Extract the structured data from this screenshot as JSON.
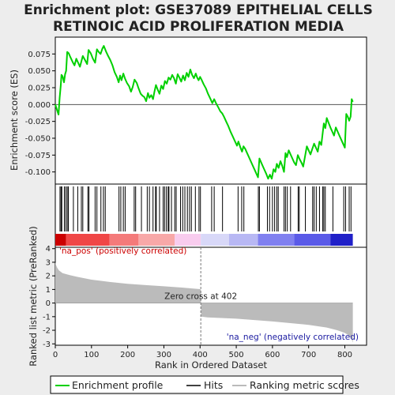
{
  "chart_data": {
    "type": "line",
    "title_line1": "Enrichment plot: GSE37089 EPITHELIAL CELLS",
    "title_line2": "RETINOIC ACID PROLIFERATION MEDIA",
    "n_genes": 822,
    "xlabel": "Rank in Ordered Dataset",
    "x_ticks": [
      0,
      100,
      200,
      300,
      400,
      500,
      600,
      700,
      800
    ],
    "xlim": [
      0,
      860
    ],
    "es_panel": {
      "ylabel": "Enrichment score (ES)",
      "ylim": [
        -0.118,
        0.1
      ],
      "y_ticks": [
        "0.075",
        "0.050",
        "0.025",
        "0.000",
        "-0.025",
        "-0.050",
        "-0.075",
        "-0.100"
      ],
      "y_tick_values": [
        0.075,
        0.05,
        0.025,
        0.0,
        -0.025,
        -0.05,
        -0.075,
        -0.1
      ],
      "color": "#00d000",
      "points": [
        [
          0,
          0.0
        ],
        [
          3,
          -0.005
        ],
        [
          6,
          -0.01
        ],
        [
          9,
          -0.015
        ],
        [
          12,
          0.01
        ],
        [
          15,
          0.028
        ],
        [
          17,
          0.044
        ],
        [
          20,
          0.042
        ],
        [
          24,
          0.033
        ],
        [
          27,
          0.045
        ],
        [
          30,
          0.05
        ],
        [
          33,
          0.078
        ],
        [
          37,
          0.076
        ],
        [
          42,
          0.07
        ],
        [
          48,
          0.063
        ],
        [
          53,
          0.058
        ],
        [
          58,
          0.068
        ],
        [
          63,
          0.062
        ],
        [
          68,
          0.056
        ],
        [
          72,
          0.064
        ],
        [
          76,
          0.072
        ],
        [
          82,
          0.066
        ],
        [
          88,
          0.06
        ],
        [
          92,
          0.081
        ],
        [
          98,
          0.076
        ],
        [
          104,
          0.068
        ],
        [
          110,
          0.062
        ],
        [
          115,
          0.082
        ],
        [
          120,
          0.078
        ],
        [
          125,
          0.075
        ],
        [
          130,
          0.083
        ],
        [
          134,
          0.087
        ],
        [
          140,
          0.079
        ],
        [
          146,
          0.072
        ],
        [
          152,
          0.066
        ],
        [
          158,
          0.058
        ],
        [
          164,
          0.048
        ],
        [
          170,
          0.041
        ],
        [
          175,
          0.033
        ],
        [
          179,
          0.043
        ],
        [
          183,
          0.036
        ],
        [
          188,
          0.046
        ],
        [
          193,
          0.038
        ],
        [
          198,
          0.032
        ],
        [
          204,
          0.027
        ],
        [
          209,
          0.019
        ],
        [
          214,
          0.026
        ],
        [
          219,
          0.037
        ],
        [
          225,
          0.032
        ],
        [
          230,
          0.024
        ],
        [
          236,
          0.016
        ],
        [
          241,
          0.013
        ],
        [
          246,
          0.011
        ],
        [
          251,
          0.005
        ],
        [
          256,
          0.017
        ],
        [
          260,
          0.01
        ],
        [
          265,
          0.014
        ],
        [
          270,
          0.008
        ],
        [
          274,
          0.019
        ],
        [
          278,
          0.029
        ],
        [
          283,
          0.022
        ],
        [
          288,
          0.016
        ],
        [
          293,
          0.028
        ],
        [
          298,
          0.023
        ],
        [
          303,
          0.035
        ],
        [
          308,
          0.031
        ],
        [
          313,
          0.04
        ],
        [
          318,
          0.037
        ],
        [
          323,
          0.044
        ],
        [
          328,
          0.039
        ],
        [
          333,
          0.031
        ],
        [
          338,
          0.045
        ],
        [
          343,
          0.04
        ],
        [
          348,
          0.034
        ],
        [
          353,
          0.043
        ],
        [
          358,
          0.036
        ],
        [
          363,
          0.047
        ],
        [
          368,
          0.041
        ],
        [
          373,
          0.052
        ],
        [
          378,
          0.044
        ],
        [
          383,
          0.039
        ],
        [
          388,
          0.046
        ],
        [
          392,
          0.04
        ],
        [
          396,
          0.036
        ],
        [
          400,
          0.041
        ],
        [
          404,
          0.037
        ],
        [
          410,
          0.03
        ],
        [
          416,
          0.024
        ],
        [
          422,
          0.016
        ],
        [
          428,
          0.009
        ],
        [
          434,
          0.002
        ],
        [
          439,
          0.008
        ],
        [
          444,
          0.002
        ],
        [
          450,
          -0.004
        ],
        [
          456,
          -0.01
        ],
        [
          461,
          -0.013
        ],
        [
          466,
          -0.018
        ],
        [
          472,
          -0.025
        ],
        [
          478,
          -0.032
        ],
        [
          484,
          -0.04
        ],
        [
          490,
          -0.047
        ],
        [
          496,
          -0.054
        ],
        [
          502,
          -0.061
        ],
        [
          506,
          -0.055
        ],
        [
          511,
          -0.063
        ],
        [
          516,
          -0.07
        ],
        [
          520,
          -0.062
        ],
        [
          525,
          -0.066
        ],
        [
          530,
          -0.072
        ],
        [
          535,
          -0.078
        ],
        [
          540,
          -0.084
        ],
        [
          545,
          -0.09
        ],
        [
          550,
          -0.096
        ],
        [
          555,
          -0.102
        ],
        [
          560,
          -0.108
        ],
        [
          564,
          -0.08
        ],
        [
          568,
          -0.085
        ],
        [
          573,
          -0.091
        ],
        [
          578,
          -0.097
        ],
        [
          583,
          -0.103
        ],
        [
          588,
          -0.11
        ],
        [
          593,
          -0.104
        ],
        [
          598,
          -0.11
        ],
        [
          603,
          -0.096
        ],
        [
          608,
          -0.1
        ],
        [
          612,
          -0.088
        ],
        [
          617,
          -0.094
        ],
        [
          622,
          -0.084
        ],
        [
          627,
          -0.091
        ],
        [
          632,
          -0.1
        ],
        [
          636,
          -0.072
        ],
        [
          640,
          -0.078
        ],
        [
          645,
          -0.068
        ],
        [
          650,
          -0.074
        ],
        [
          655,
          -0.08
        ],
        [
          660,
          -0.086
        ],
        [
          665,
          -0.09
        ],
        [
          670,
          -0.075
        ],
        [
          675,
          -0.081
        ],
        [
          680,
          -0.086
        ],
        [
          685,
          -0.092
        ],
        [
          690,
          -0.077
        ],
        [
          695,
          -0.062
        ],
        [
          700,
          -0.068
        ],
        [
          705,
          -0.074
        ],
        [
          710,
          -0.066
        ],
        [
          715,
          -0.058
        ],
        [
          720,
          -0.064
        ],
        [
          725,
          -0.07
        ],
        [
          730,
          -0.055
        ],
        [
          735,
          -0.06
        ],
        [
          738,
          -0.046
        ],
        [
          742,
          -0.028
        ],
        [
          746,
          -0.035
        ],
        [
          750,
          -0.02
        ],
        [
          755,
          -0.027
        ],
        [
          760,
          -0.034
        ],
        [
          765,
          -0.04
        ],
        [
          770,
          -0.046
        ],
        [
          775,
          -0.034
        ],
        [
          780,
          -0.04
        ],
        [
          785,
          -0.046
        ],
        [
          790,
          -0.052
        ],
        [
          795,
          -0.058
        ],
        [
          800,
          -0.064
        ],
        [
          804,
          -0.014
        ],
        [
          808,
          -0.018
        ],
        [
          812,
          -0.024
        ],
        [
          816,
          -0.018
        ],
        [
          819,
          0.008
        ],
        [
          822,
          0.004
        ]
      ]
    },
    "hits_panel": {
      "hit_ranks": [
        13,
        16,
        18,
        25,
        29,
        33,
        36,
        50,
        62,
        72,
        76,
        90,
        93,
        110,
        115,
        126,
        133,
        138,
        176,
        181,
        188,
        193,
        218,
        222,
        238,
        254,
        260,
        270,
        277,
        279,
        288,
        298,
        302,
        307,
        312,
        314,
        321,
        330,
        334,
        346,
        352,
        358,
        365,
        371,
        376,
        387,
        397,
        401,
        432,
        439,
        462,
        505,
        515,
        521,
        561,
        564,
        586,
        592,
        600,
        606,
        612,
        616,
        632,
        636,
        641,
        650,
        671,
        674,
        691,
        711,
        715,
        721,
        730,
        739,
        742,
        746,
        767,
        797,
        802,
        812,
        817
      ],
      "gradient": [
        {
          "from": 0,
          "to": 30,
          "color": "#cc0000"
        },
        {
          "from": 30,
          "to": 150,
          "color": "#f04646"
        },
        {
          "from": 150,
          "to": 230,
          "color": "#f47a7a"
        },
        {
          "from": 230,
          "to": 330,
          "color": "#f8a8a8"
        },
        {
          "from": 330,
          "to": 402,
          "color": "#f8ccee"
        },
        {
          "from": 402,
          "to": 480,
          "color": "#d8d8f8"
        },
        {
          "from": 480,
          "to": 560,
          "color": "#b8b8f4"
        },
        {
          "from": 560,
          "to": 660,
          "color": "#8080f0"
        },
        {
          "from": 660,
          "to": 760,
          "color": "#5a5ae8"
        },
        {
          "from": 760,
          "to": 822,
          "color": "#2020c8"
        }
      ]
    },
    "metric_panel": {
      "ylabel": "Ranked list metric (PreRanked)",
      "ylim": [
        -3.1,
        4.1
      ],
      "y_ticks": [
        "4",
        "3",
        "2",
        "1",
        "0",
        "-1",
        "-2",
        "-3"
      ],
      "y_tick_values": [
        4,
        3,
        2,
        1,
        0,
        -1,
        -2,
        -3
      ],
      "color": "#bbbbbb",
      "zero_cross": 402,
      "zero_cross_label": "Zero cross at 402",
      "pos_label": "'na_pos' (positively correlated)",
      "neg_label": "'na_neg' (negatively correlated)",
      "pos_color": "#cc0000",
      "neg_color": "#1a1aa0",
      "profile": [
        [
          0,
          3.0
        ],
        [
          2,
          2.8
        ],
        [
          5,
          2.6
        ],
        [
          10,
          2.4
        ],
        [
          20,
          2.2
        ],
        [
          40,
          2.05
        ],
        [
          60,
          1.93
        ],
        [
          100,
          1.72
        ],
        [
          150,
          1.55
        ],
        [
          200,
          1.42
        ],
        [
          250,
          1.32
        ],
        [
          300,
          1.23
        ],
        [
          350,
          1.14
        ],
        [
          400,
          1.02
        ],
        [
          402,
          0.98
        ],
        [
          403,
          -1.0
        ],
        [
          420,
          -1.05
        ],
        [
          500,
          -1.15
        ],
        [
          600,
          -1.35
        ],
        [
          700,
          -1.6
        ],
        [
          750,
          -1.8
        ],
        [
          780,
          -2.0
        ],
        [
          800,
          -2.2
        ],
        [
          810,
          -2.35
        ],
        [
          818,
          -2.6
        ],
        [
          822,
          -2.9
        ]
      ]
    },
    "legend": {
      "items": [
        "Enrichment profile",
        "Hits",
        "Ranking metric scores"
      ],
      "colors": [
        "#00d000",
        "#000000",
        "#bbbbbb"
      ]
    }
  }
}
